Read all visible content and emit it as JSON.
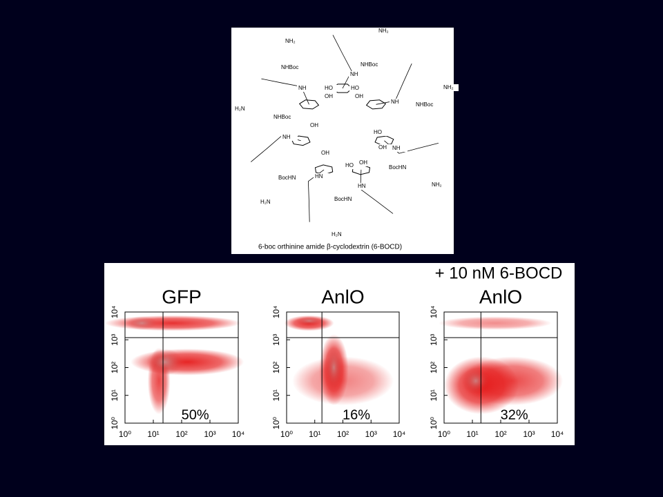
{
  "header": "+ 10 nM 6-BOCD",
  "structure": {
    "caption": "6-boc orthinine amide β-cyclodextrin (6-BOCD)",
    "labels": [
      "NH₂",
      "NHBoc",
      "NH",
      "NH₂",
      "NHBoc",
      "NH",
      "HO",
      "HO",
      "OH",
      "OH",
      "NH",
      "NH₂",
      "NHBoc",
      "H₂N",
      "NHBoc",
      "OH",
      "NH",
      "HO",
      "OH",
      "NH",
      "BocHN",
      "NH₂",
      "OH",
      "HO",
      "OH",
      "BocHN",
      "HN",
      "H₂N",
      "HN",
      "BocHN",
      "H₂N"
    ]
  },
  "plots": [
    {
      "title": "GFP",
      "percent": "50%",
      "log_scale": true,
      "gate": {
        "x": 22,
        "y": 1200
      },
      "xlim": [
        1,
        10000
      ],
      "ylim": [
        1,
        10000
      ],
      "xticks": [
        {
          "value": 1,
          "label": "10⁰"
        },
        {
          "value": 10,
          "label": "10¹"
        },
        {
          "value": 100,
          "label": "10²"
        },
        {
          "value": 1000,
          "label": "10³"
        },
        {
          "value": 10000,
          "label": "10⁴"
        }
      ],
      "yticks": [
        {
          "value": 1,
          "label": "10⁰"
        },
        {
          "value": 10,
          "label": "10¹"
        },
        {
          "value": 100,
          "label": "10²"
        },
        {
          "value": 1000,
          "label": "10³"
        },
        {
          "value": 10000,
          "label": "10⁴"
        }
      ]
    },
    {
      "title": "AnlO",
      "percent": "16%",
      "log_scale": true,
      "gate": {
        "x": 18,
        "y": 1200
      },
      "xlim": [
        1,
        10000
      ],
      "ylim": [
        1,
        10000
      ],
      "xticks": [
        {
          "value": 1,
          "label": "10⁰"
        },
        {
          "value": 10,
          "label": "10¹"
        },
        {
          "value": 100,
          "label": "10²"
        },
        {
          "value": 1000,
          "label": "10³"
        },
        {
          "value": 10000,
          "label": "10⁴"
        }
      ],
      "yticks": [
        {
          "value": 1,
          "label": "10⁰"
        },
        {
          "value": 10,
          "label": "10¹"
        },
        {
          "value": 100,
          "label": "10²"
        },
        {
          "value": 1000,
          "label": "10³"
        },
        {
          "value": 10000,
          "label": "10⁴"
        }
      ]
    },
    {
      "title": "AnlO",
      "percent": "32%",
      "log_scale": true,
      "gate": {
        "x": 20,
        "y": 1200
      },
      "xlim": [
        1,
        10000
      ],
      "ylim": [
        1,
        10000
      ],
      "xticks": [
        {
          "value": 1,
          "label": "10⁰"
        },
        {
          "value": 10,
          "label": "10¹"
        },
        {
          "value": 100,
          "label": "10²"
        },
        {
          "value": 1000,
          "label": "10³"
        },
        {
          "value": 10000,
          "label": "10⁴"
        }
      ],
      "yticks": [
        {
          "value": 1,
          "label": "10⁰"
        },
        {
          "value": 10,
          "label": "10¹"
        },
        {
          "value": 100,
          "label": "10²"
        },
        {
          "value": 1000,
          "label": "10³"
        },
        {
          "value": 10000,
          "label": "10⁴"
        }
      ]
    }
  ]
}
